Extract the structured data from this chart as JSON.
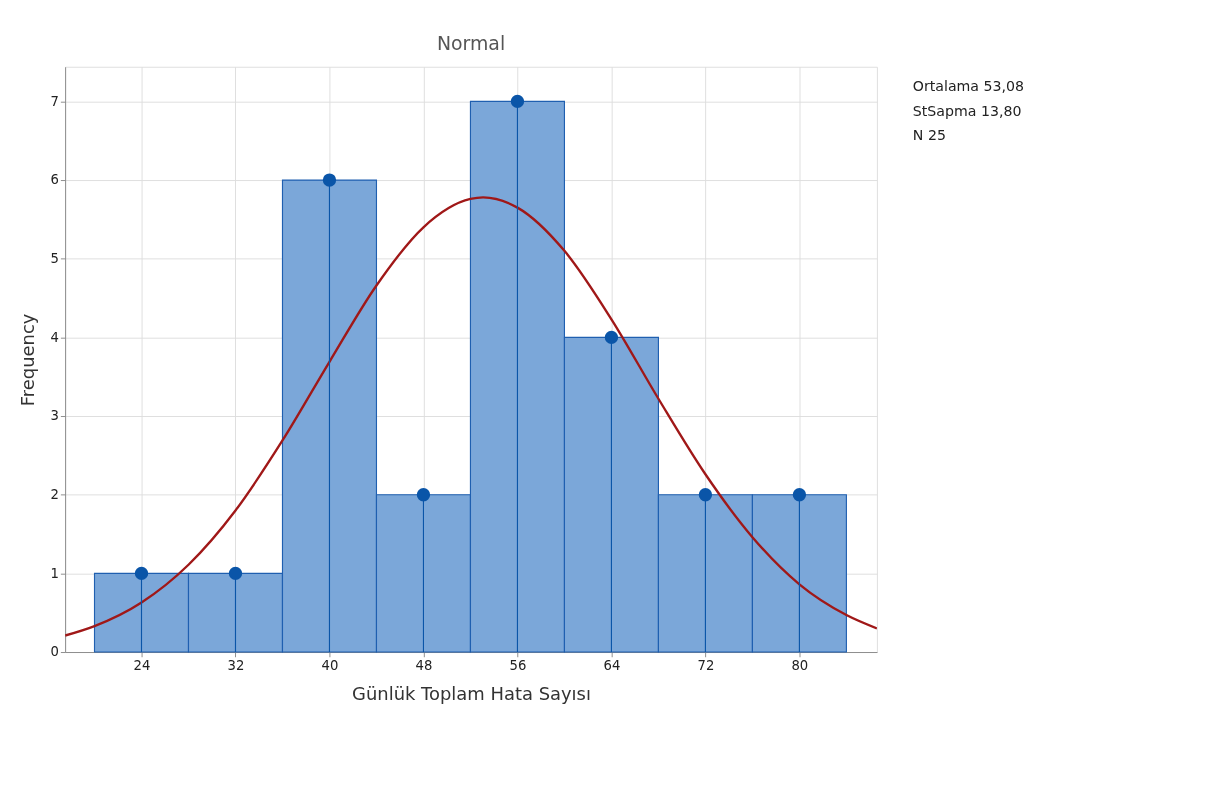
{
  "chart_data": {
    "type": "histogram",
    "title": "Normal",
    "xlabel": "Günlük Toplam Hata Sayısı",
    "ylabel": "Frequency",
    "bins": [
      20,
      28,
      36,
      44,
      52,
      60,
      68,
      76,
      84
    ],
    "values": [
      1,
      1,
      6,
      2,
      7,
      4,
      2,
      2
    ],
    "color": "#7ba7d9",
    "xlim": [
      17.5,
      86.6
    ],
    "xticks": [
      24,
      32,
      40,
      48,
      56,
      64,
      72,
      80
    ],
    "ylim": [
      0,
      7.44
    ],
    "yticks": [
      0,
      1,
      2,
      3,
      4,
      5,
      6,
      7
    ],
    "grid": true,
    "annotations": [
      "Ortalama 53,08",
      "StSapma 13,80",
      "N 25"
    ],
    "series": [
      {
        "type": "line",
        "color": "#a01818",
        "x": [
          17.5,
          20,
          24,
          28,
          32,
          36,
          40,
          44,
          48,
          52,
          53.08,
          56,
          60,
          64,
          68,
          72,
          76,
          80,
          84,
          86.6
        ],
        "values": [
          0.21,
          0.33,
          0.63,
          1.11,
          1.8,
          2.69,
          3.69,
          4.66,
          5.4,
          5.76,
          5.78,
          5.65,
          5.1,
          4.23,
          3.22,
          2.26,
          1.46,
          0.86,
          0.47,
          0.3
        ]
      },
      {
        "type": "lollipop",
        "color": "#0a55a8",
        "marker": "circle",
        "x": [
          24,
          32,
          40,
          48,
          56,
          64,
          72,
          80
        ],
        "values": [
          1,
          1,
          6,
          2,
          7,
          4,
          2,
          2
        ]
      }
    ]
  }
}
